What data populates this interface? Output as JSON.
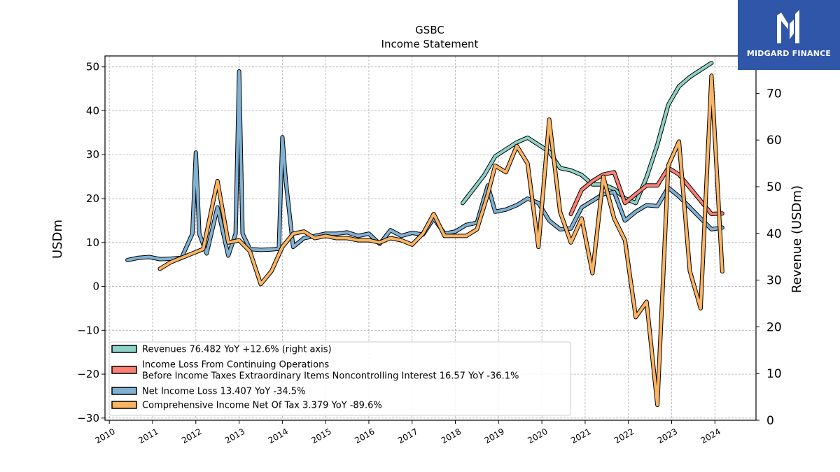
{
  "brand": {
    "name": "MIDGARD FINANCE",
    "bg": "#2f56a8"
  },
  "chart_data": {
    "type": "line",
    "title": "GSBC",
    "subtitle": "Income Statement",
    "ylabel": "USDm",
    "ylabel_right": "Revenue (USDm)",
    "ylim": [
      -30.5,
      52.5
    ],
    "ylim_right": [
      0,
      78
    ],
    "yticks": [
      -30,
      -20,
      -10,
      0,
      10,
      20,
      30,
      40,
      50
    ],
    "yticks_right": [
      0,
      10,
      20,
      30,
      40,
      50,
      60,
      70
    ],
    "xlim": [
      2009.9,
      2024.95
    ],
    "xticks": [
      2010,
      2011,
      2012,
      2013,
      2014,
      2015,
      2016,
      2017,
      2018,
      2019,
      2020,
      2021,
      2022,
      2023,
      2024
    ],
    "grid": true,
    "legend_position": "lower-left",
    "series": [
      {
        "name": "Revenues",
        "legend": "Revenues  76.482 YoY +12.6% (right axis)",
        "color": "#8dd3c7",
        "axis": "right",
        "points": [
          [
            2018.17,
            46.5
          ],
          [
            2018.42,
            49.5
          ],
          [
            2018.67,
            52.5
          ],
          [
            2018.92,
            56.5
          ],
          [
            2019.17,
            58
          ],
          [
            2019.42,
            59.5
          ],
          [
            2019.67,
            60.5
          ],
          [
            2019.92,
            59
          ],
          [
            2020.17,
            57.5
          ],
          [
            2020.42,
            54
          ],
          [
            2020.67,
            53.5
          ],
          [
            2020.92,
            52.5
          ],
          [
            2021.17,
            50.5
          ],
          [
            2021.42,
            50.5
          ],
          [
            2021.67,
            49.5
          ],
          [
            2021.92,
            47.5
          ],
          [
            2022.17,
            46.5
          ],
          [
            2022.42,
            52
          ],
          [
            2022.67,
            59
          ],
          [
            2022.92,
            67.5
          ],
          [
            2023.17,
            71.5
          ],
          [
            2023.42,
            73.5
          ],
          [
            2023.67,
            75
          ],
          [
            2023.92,
            76.5
          ]
        ]
      },
      {
        "name": "Income Loss From Continuing Operations Before Income Taxes Extraordinary Items Noncontrolling Interest",
        "legend_lines": [
          "Income Loss From Continuing Operations",
          "Before Income Taxes Extraordinary Items Noncontrolling Interest  16.57 YoY -36.1%"
        ],
        "color": "#fb8072",
        "axis": "left",
        "points": [
          [
            2020.67,
            16.5
          ],
          [
            2020.92,
            22
          ],
          [
            2021.17,
            24
          ],
          [
            2021.42,
            25.5
          ],
          [
            2021.67,
            26
          ],
          [
            2021.92,
            19
          ],
          [
            2022.17,
            21
          ],
          [
            2022.42,
            23
          ],
          [
            2022.67,
            23
          ],
          [
            2022.92,
            27
          ],
          [
            2023.17,
            25.5
          ],
          [
            2023.42,
            22.5
          ],
          [
            2023.67,
            19.5
          ],
          [
            2023.92,
            16.5
          ],
          [
            2024.17,
            16.6
          ]
        ]
      },
      {
        "name": "Net Income Loss",
        "legend": "Net Income Loss  13.407 YoY -34.5%",
        "color": "#80b1d3",
        "axis": "left",
        "points": [
          [
            2010.42,
            6
          ],
          [
            2010.67,
            6.5
          ],
          [
            2010.92,
            6.7
          ],
          [
            2011.17,
            6.2
          ],
          [
            2011.42,
            6.3
          ],
          [
            2011.67,
            6.5
          ],
          [
            2011.92,
            12
          ],
          [
            2012.0,
            30.5
          ],
          [
            2012.08,
            12
          ],
          [
            2012.25,
            7.5
          ],
          [
            2012.5,
            18
          ],
          [
            2012.75,
            7
          ],
          [
            2012.92,
            12
          ],
          [
            2013.0,
            49
          ],
          [
            2013.08,
            12
          ],
          [
            2013.25,
            8.5
          ],
          [
            2013.5,
            8.3
          ],
          [
            2013.75,
            8.4
          ],
          [
            2013.92,
            8.6
          ],
          [
            2014.0,
            34
          ],
          [
            2014.08,
            24
          ],
          [
            2014.25,
            9
          ],
          [
            2014.5,
            11
          ],
          [
            2014.75,
            11.5
          ],
          [
            2015.0,
            12
          ],
          [
            2015.25,
            12
          ],
          [
            2015.5,
            12.3
          ],
          [
            2015.75,
            11.5
          ],
          [
            2016.0,
            12
          ],
          [
            2016.25,
            9.7
          ],
          [
            2016.5,
            12.8
          ],
          [
            2016.75,
            11.5
          ],
          [
            2017.0,
            12.2
          ],
          [
            2017.25,
            11.8
          ],
          [
            2017.5,
            15.5
          ],
          [
            2017.75,
            12
          ],
          [
            2018.0,
            12.5
          ],
          [
            2018.25,
            14
          ],
          [
            2018.5,
            14.5
          ],
          [
            2018.75,
            23
          ],
          [
            2018.92,
            17
          ],
          [
            2019.17,
            17.5
          ],
          [
            2019.42,
            18.5
          ],
          [
            2019.67,
            20
          ],
          [
            2019.92,
            19
          ],
          [
            2020.17,
            15
          ],
          [
            2020.42,
            13
          ],
          [
            2020.67,
            13.2
          ],
          [
            2020.92,
            18
          ],
          [
            2021.17,
            19.5
          ],
          [
            2021.42,
            21
          ],
          [
            2021.67,
            21.5
          ],
          [
            2021.92,
            15
          ],
          [
            2022.17,
            17
          ],
          [
            2022.42,
            18.5
          ],
          [
            2022.67,
            18.3
          ],
          [
            2022.92,
            22.5
          ],
          [
            2023.17,
            20.5
          ],
          [
            2023.42,
            18
          ],
          [
            2023.67,
            15.5
          ],
          [
            2023.92,
            13
          ],
          [
            2024.17,
            13.4
          ]
        ]
      },
      {
        "name": "Comprehensive Income Net Of Tax",
        "legend": "Comprehensive Income Net Of Tax  3.379 YoY -89.6%",
        "color": "#fdb462",
        "axis": "left",
        "points": [
          [
            2011.17,
            4
          ],
          [
            2011.42,
            5.5
          ],
          [
            2011.67,
            6.5
          ],
          [
            2011.92,
            7.5
          ],
          [
            2012.17,
            8.5
          ],
          [
            2012.5,
            24
          ],
          [
            2012.75,
            10
          ],
          [
            2013.0,
            10.5
          ],
          [
            2013.25,
            8
          ],
          [
            2013.5,
            0.5
          ],
          [
            2013.75,
            3.5
          ],
          [
            2014.0,
            9
          ],
          [
            2014.25,
            12
          ],
          [
            2014.5,
            12.5
          ],
          [
            2014.75,
            11
          ],
          [
            2015.0,
            11.5
          ],
          [
            2015.25,
            11
          ],
          [
            2015.5,
            11
          ],
          [
            2015.75,
            10.5
          ],
          [
            2016.0,
            10.5
          ],
          [
            2016.25,
            10
          ],
          [
            2016.5,
            11
          ],
          [
            2016.75,
            10.5
          ],
          [
            2017.0,
            9.5
          ],
          [
            2017.25,
            12
          ],
          [
            2017.5,
            16.5
          ],
          [
            2017.75,
            11.5
          ],
          [
            2018.0,
            11.5
          ],
          [
            2018.25,
            11.5
          ],
          [
            2018.5,
            13
          ],
          [
            2018.75,
            21
          ],
          [
            2018.92,
            27.5
          ],
          [
            2019.17,
            26
          ],
          [
            2019.42,
            32
          ],
          [
            2019.67,
            28
          ],
          [
            2019.92,
            9
          ],
          [
            2020.17,
            38
          ],
          [
            2020.42,
            17
          ],
          [
            2020.67,
            10
          ],
          [
            2020.92,
            15.5
          ],
          [
            2021.17,
            3
          ],
          [
            2021.42,
            25
          ],
          [
            2021.67,
            15.5
          ],
          [
            2021.92,
            10.5
          ],
          [
            2022.17,
            -7
          ],
          [
            2022.42,
            -3.5
          ],
          [
            2022.67,
            -27
          ],
          [
            2022.92,
            27.5
          ],
          [
            2023.17,
            33
          ],
          [
            2023.42,
            3.5
          ],
          [
            2023.67,
            -5
          ],
          [
            2023.92,
            48
          ],
          [
            2024.17,
            3.4
          ]
        ]
      }
    ]
  }
}
